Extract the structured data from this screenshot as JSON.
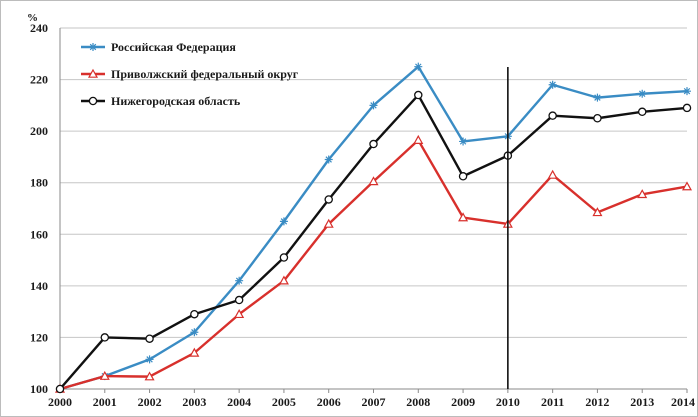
{
  "chart_data": {
    "type": "line",
    "title": "",
    "xlabel": "",
    "ylabel": "%",
    "ylim": [
      100,
      240
    ],
    "yticks": [
      100,
      120,
      140,
      160,
      180,
      200,
      220,
      240
    ],
    "categories": [
      "2000",
      "2001",
      "2002",
      "2003",
      "2004",
      "2005",
      "2006",
      "2007",
      "2008",
      "2009",
      "2010",
      "2011",
      "2012",
      "2013",
      "2014"
    ],
    "grid": "horizontal",
    "legend_position": "top-left",
    "marker_line_year": "2010",
    "series": [
      {
        "name": "Российская Федерация",
        "color": "#3a8cc4",
        "marker": "star",
        "values": [
          100,
          105,
          111.5,
          122,
          142,
          165,
          189,
          210,
          225,
          196,
          198,
          218,
          213,
          214.5,
          215.5
        ]
      },
      {
        "name": "Приволжский федеральный округ",
        "color": "#d8302c",
        "marker": "triangle",
        "values": [
          100,
          105,
          104.8,
          114,
          129,
          142,
          164,
          180.5,
          196.5,
          166.5,
          164,
          183,
          168.5,
          175.5,
          178.5
        ]
      },
      {
        "name": "Нижегородская область",
        "color": "#111111",
        "marker": "circle",
        "values": [
          100,
          120,
          119.5,
          129,
          134.5,
          151,
          173.5,
          195,
          214,
          182.5,
          190.5,
          206,
          205,
          207.5,
          209
        ]
      }
    ]
  }
}
